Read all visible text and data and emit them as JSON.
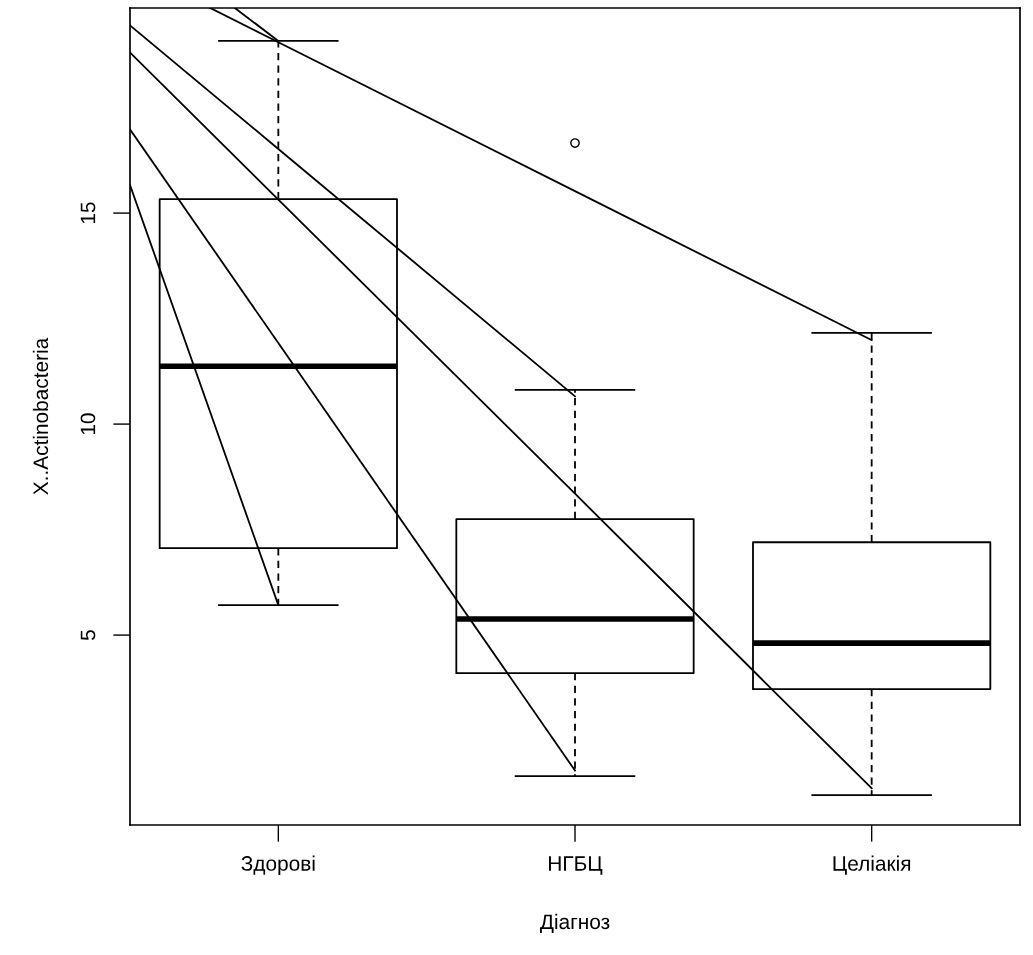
{
  "chart_data": {
    "type": "box",
    "xlabel": "Діагноз",
    "ylabel": "X..Actinobacteria",
    "categories": [
      "Здорові",
      "НГБЦ",
      "Целіакія"
    ],
    "boxes": [
      {
        "low": 5.71,
        "q1": 7.06,
        "median": 11.37,
        "q3": 15.33,
        "high": 19.08
      },
      {
        "low": 1.66,
        "q1": 4.1,
        "median": 5.38,
        "q3": 7.75,
        "high": 10.81,
        "outliers": [
          16.66
        ]
      },
      {
        "low": 1.21,
        "q1": 3.72,
        "median": 4.81,
        "q3": 7.2,
        "high": 12.16
      }
    ],
    "series": [
      {
        "type": "line",
        "color": "#000000",
        "values": [
          11.92,
          1.79,
          null
        ]
      },
      {
        "type": "line",
        "color": "#000000",
        "values": [
          15.32,
          8.35,
          1.37
        ]
      },
      {
        "type": "line",
        "color": "#000000",
        "values": [
          16.52,
          10.66,
          null
        ]
      },
      {
        "type": "line",
        "color": "#000000",
        "values": [
          19.05,
          15.52,
          11.99
        ]
      }
    ],
    "ylim": [
      0.5,
      19.86
    ],
    "yticks": [
      5,
      10,
      15
    ],
    "grid": false
  }
}
